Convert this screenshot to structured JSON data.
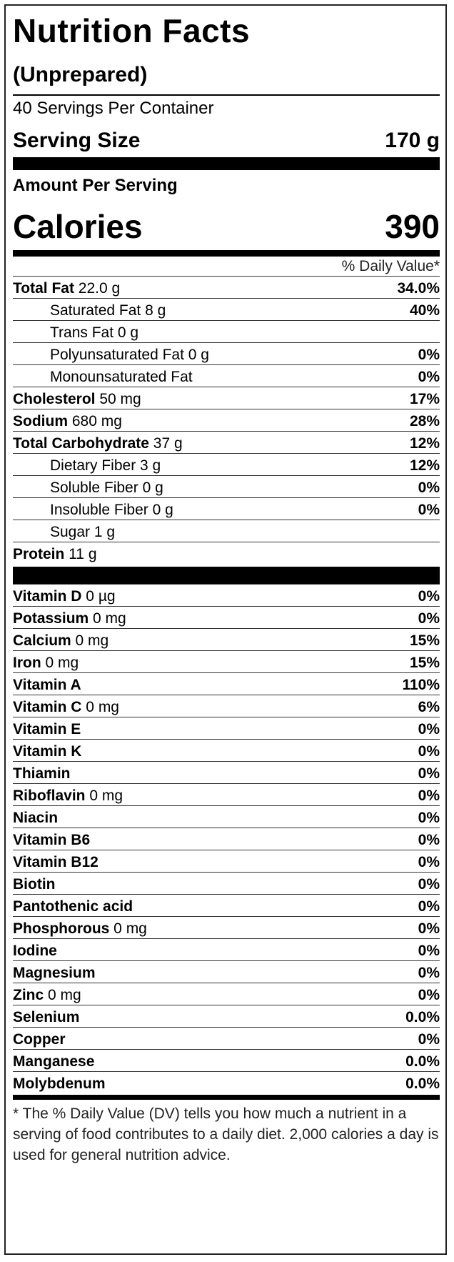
{
  "title": "Nutrition Facts",
  "subtitle": "(Unprepared)",
  "servings_per_container": "40 Servings Per Container",
  "serving_size": {
    "label": "Serving Size",
    "value": "170 g"
  },
  "amount_per_serving": "Amount Per Serving",
  "calories": {
    "label": "Calories",
    "value": "390"
  },
  "daily_value_header": "% Daily Value*",
  "nutrients": [
    {
      "bold": "Total Fat",
      "text": " 22.0 g",
      "pct": "34.0%",
      "indent": false
    },
    {
      "bold": "",
      "text": "Saturated Fat 8 g",
      "pct": "40%",
      "indent": true
    },
    {
      "bold": "",
      "text": "Trans Fat 0 g",
      "pct": "",
      "indent": true
    },
    {
      "bold": "",
      "text": "Polyunsaturated Fat 0 g",
      "pct": "0%",
      "indent": true
    },
    {
      "bold": "",
      "text": "Monounsaturated Fat",
      "pct": "0%",
      "indent": true
    },
    {
      "bold": "Cholesterol",
      "text": " 50 mg",
      "pct": "17%",
      "indent": false
    },
    {
      "bold": "Sodium",
      "text": " 680 mg",
      "pct": "28%",
      "indent": false
    },
    {
      "bold": "Total Carbohydrate",
      "text": " 37 g",
      "pct": "12%",
      "indent": false
    },
    {
      "bold": "",
      "text": "Dietary Fiber 3 g",
      "pct": "12%",
      "indent": true
    },
    {
      "bold": "",
      "text": "Soluble Fiber 0 g",
      "pct": "0%",
      "indent": true
    },
    {
      "bold": "",
      "text": "Insoluble Fiber 0 g",
      "pct": "0%",
      "indent": true
    },
    {
      "bold": "",
      "text": "Sugar 1 g",
      "pct": "",
      "indent": true
    },
    {
      "bold": "Protein",
      "text": " 11 g",
      "pct": "",
      "indent": false
    }
  ],
  "vitamins": [
    {
      "bold": "Vitamin D",
      "text": " 0 µg",
      "pct": "0%"
    },
    {
      "bold": "Potassium",
      "text": " 0 mg",
      "pct": "0%"
    },
    {
      "bold": "Calcium",
      "text": " 0 mg",
      "pct": "15%"
    },
    {
      "bold": "Iron",
      "text": " 0 mg",
      "pct": "15%"
    },
    {
      "bold": "Vitamin A",
      "text": "",
      "pct": "110%"
    },
    {
      "bold": "Vitamin C",
      "text": " 0 mg",
      "pct": "6%"
    },
    {
      "bold": "Vitamin E",
      "text": "",
      "pct": "0%"
    },
    {
      "bold": "Vitamin K",
      "text": "",
      "pct": "0%"
    },
    {
      "bold": "Thiamin",
      "text": "",
      "pct": "0%"
    },
    {
      "bold": "Riboflavin",
      "text": " 0 mg",
      "pct": "0%"
    },
    {
      "bold": "Niacin",
      "text": "",
      "pct": "0%"
    },
    {
      "bold": "Vitamin B6",
      "text": "",
      "pct": "0%"
    },
    {
      "bold": "Vitamin B12",
      "text": "",
      "pct": "0%"
    },
    {
      "bold": "Biotin",
      "text": "",
      "pct": "0%"
    },
    {
      "bold": "Pantothenic acid",
      "text": "",
      "pct": "0%"
    },
    {
      "bold": "Phosphorous",
      "text": " 0 mg",
      "pct": "0%"
    },
    {
      "bold": "Iodine",
      "text": "",
      "pct": "0%"
    },
    {
      "bold": "Magnesium",
      "text": "",
      "pct": "0%"
    },
    {
      "bold": "Zinc",
      "text": " 0 mg",
      "pct": "0%"
    },
    {
      "bold": "Selenium",
      "text": "",
      "pct": "0.0%"
    },
    {
      "bold": "Copper",
      "text": "",
      "pct": "0%"
    },
    {
      "bold": "Manganese",
      "text": "",
      "pct": "0.0%"
    },
    {
      "bold": "Molybdenum",
      "text": "",
      "pct": "0.0%"
    }
  ],
  "footnote": "* The % Daily Value (DV) tells you how much a nutrient in a serving of food contributes to a daily diet. 2,000 calories a day is used for general nutrition advice."
}
